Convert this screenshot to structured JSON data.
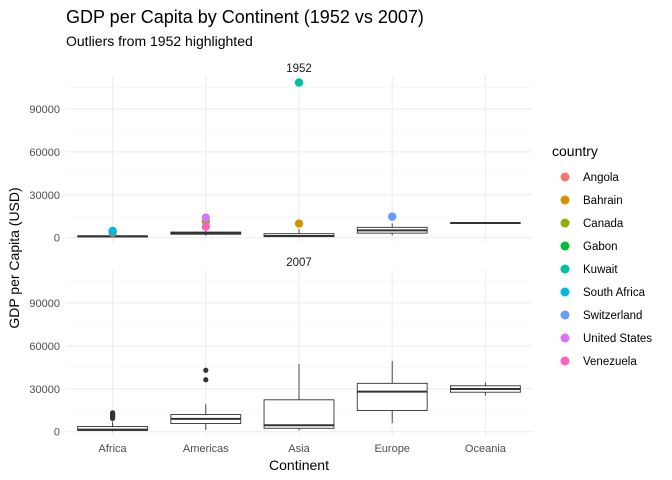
{
  "chart_data": {
    "type": "box",
    "title": "GDP per Capita by Continent (1952 vs 2007)",
    "subtitle": "Outliers from 1952 highlighted",
    "xlabel": "Continent",
    "ylabel": "GDP per Capita (USD)",
    "categories": [
      "Africa",
      "Americas",
      "Asia",
      "Europe",
      "Oceania"
    ],
    "ylim": [
      -3000,
      113000
    ],
    "yticks": [
      0,
      30000,
      60000,
      90000
    ],
    "ytick_labels": [
      "0",
      "30000",
      "60000",
      "90000"
    ],
    "grid": true,
    "legend": {
      "title": "country",
      "placement": "right",
      "entries": [
        {
          "name": "Angola",
          "color": "#F8766D"
        },
        {
          "name": "Bahrain",
          "color": "#D39200"
        },
        {
          "name": "Canada",
          "color": "#93AA00"
        },
        {
          "name": "Gabon",
          "color": "#00BA38"
        },
        {
          "name": "Kuwait",
          "color": "#00C19F"
        },
        {
          "name": "South Africa",
          "color": "#00B9E3"
        },
        {
          "name": "Switzerland",
          "color": "#619CFF"
        },
        {
          "name": "United States",
          "color": "#DB72FB"
        },
        {
          "name": "Venezuela",
          "color": "#FF61C3"
        }
      ]
    },
    "panels": [
      {
        "label": "1952",
        "boxes": [
          {
            "category": "Africa",
            "min": 300,
            "q1": 535,
            "median": 990,
            "q3": 1250,
            "max": 2100,
            "outliers": []
          },
          {
            "category": "Americas",
            "min": 1400,
            "q1": 2430,
            "median": 3050,
            "q3": 3940,
            "max": 5900,
            "outliers": []
          },
          {
            "category": "Asia",
            "min": 330,
            "q1": 750,
            "median": 1210,
            "q3": 2800,
            "max": 6000,
            "outliers": []
          },
          {
            "category": "Europe",
            "min": 1600,
            "q1": 3200,
            "median": 5140,
            "q3": 7240,
            "max": 10000,
            "outliers": []
          },
          {
            "category": "Oceania",
            "min": 10040,
            "q1": 10200,
            "median": 10300,
            "q3": 10450,
            "max": 10560,
            "outliers": []
          }
        ],
        "highlighted_points": [
          {
            "country": "Angola",
            "category": "Africa",
            "value": 3520
          },
          {
            "country": "Gabon",
            "category": "Africa",
            "value": 4290
          },
          {
            "country": "South Africa",
            "category": "Africa",
            "value": 4720
          },
          {
            "country": "Canada",
            "category": "Americas",
            "value": 11370
          },
          {
            "country": "United States",
            "category": "Americas",
            "value": 13990
          },
          {
            "country": "Venezuela",
            "category": "Americas",
            "value": 7690
          },
          {
            "country": "Kuwait",
            "category": "Asia",
            "value": 108380
          },
          {
            "country": "Bahrain",
            "category": "Asia",
            "value": 9870
          },
          {
            "country": "Switzerland",
            "category": "Europe",
            "value": 14730
          }
        ]
      },
      {
        "label": "2007",
        "boxes": [
          {
            "category": "Africa",
            "min": 280,
            "q1": 860,
            "median": 1450,
            "q3": 3600,
            "max": 7100,
            "outliers": [
              9270,
              10200,
              10800,
              11600,
              12200,
              12600,
              13200
            ]
          },
          {
            "category": "Americas",
            "min": 1200,
            "q1": 5700,
            "median": 8950,
            "q3": 11980,
            "max": 19300,
            "outliers": [
              36300,
              42950
            ]
          },
          {
            "category": "Asia",
            "min": 940,
            "q1": 2400,
            "median": 4470,
            "q3": 22300,
            "max": 47300,
            "outliers": []
          },
          {
            "category": "Europe",
            "min": 5940,
            "q1": 14800,
            "median": 28050,
            "q3": 33800,
            "max": 49400,
            "outliers": []
          },
          {
            "category": "Oceania",
            "min": 25200,
            "q1": 27600,
            "median": 29800,
            "q3": 32100,
            "max": 34400,
            "outliers": []
          }
        ],
        "highlighted_points": []
      }
    ]
  }
}
